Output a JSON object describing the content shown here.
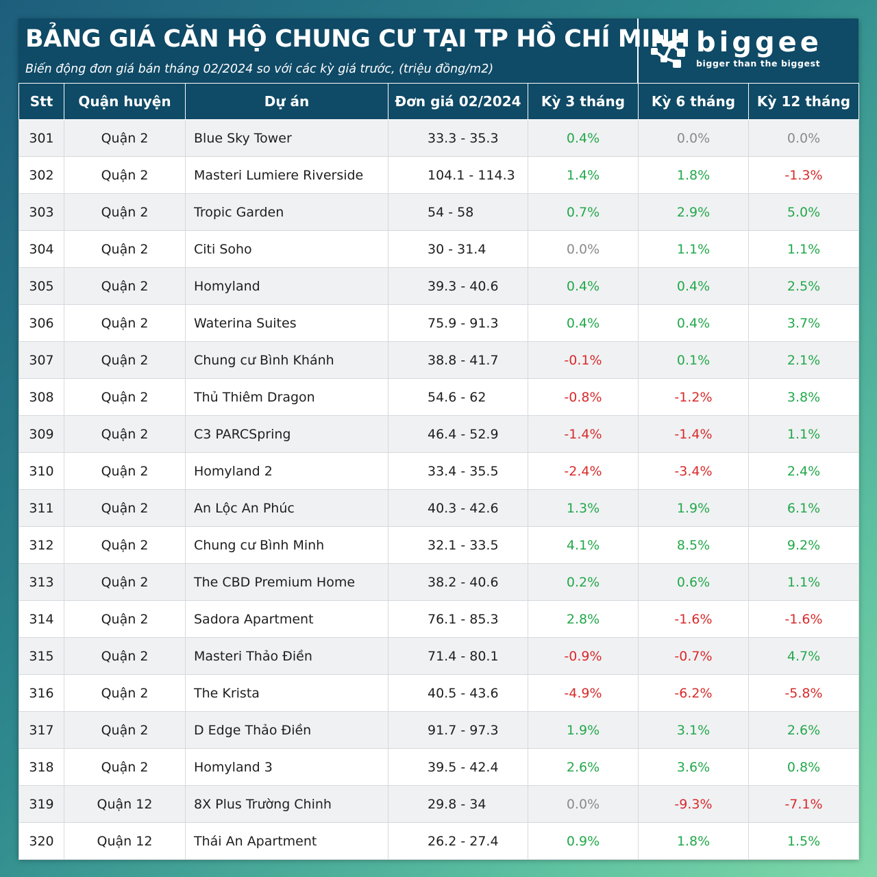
{
  "title": "BẢNG GIÁ CĂN HỘ CHUNG CƯ TẠI TP HỒ CHÍ MINH",
  "subtitle": "Biến động đơn giá bán tháng 02/2024 so với các kỳ giá trước, (triệu đồng/m2)",
  "logo": {
    "wordmark": "biggee",
    "tagline": "bigger than the biggest",
    "icon": "biggee-network-logo-icon"
  },
  "colors": {
    "header_bg": "#0f4a66",
    "positive": "#22a84a",
    "negative": "#d82a2a",
    "zero": "#8a8a8a"
  },
  "chart_data": {
    "type": "table",
    "columns": [
      "Stt",
      "Quận huyện",
      "Dự án",
      "Đơn giá 02/2024",
      "Kỳ 3 tháng",
      "Kỳ 6 tháng",
      "Kỳ 12 tháng"
    ],
    "rows": [
      [
        "301",
        "Quận 2",
        "Blue Sky Tower",
        "33.3 - 35.3",
        "0.4%",
        "0.0%",
        "0.0%"
      ],
      [
        "302",
        "Quận 2",
        "Masteri Lumiere Riverside",
        "104.1 - 114.3",
        "1.4%",
        "1.8%",
        "-1.3%"
      ],
      [
        "303",
        "Quận 2",
        "Tropic Garden",
        "54 - 58",
        "0.7%",
        "2.9%",
        "5.0%"
      ],
      [
        "304",
        "Quận 2",
        "Citi Soho",
        "30 - 31.4",
        "0.0%",
        "1.1%",
        "1.1%"
      ],
      [
        "305",
        "Quận 2",
        "Homyland",
        "39.3 - 40.6",
        "0.4%",
        "0.4%",
        "2.5%"
      ],
      [
        "306",
        "Quận 2",
        "Waterina Suites",
        "75.9 - 91.3",
        "0.4%",
        "0.4%",
        "3.7%"
      ],
      [
        "307",
        "Quận 2",
        "Chung cư Bình Khánh",
        "38.8 - 41.7",
        "-0.1%",
        "0.1%",
        "2.1%"
      ],
      [
        "308",
        "Quận 2",
        "Thủ Thiêm Dragon",
        "54.6 - 62",
        "-0.8%",
        "-1.2%",
        "3.8%"
      ],
      [
        "309",
        "Quận 2",
        "C3 PARCSpring",
        "46.4 - 52.9",
        "-1.4%",
        "-1.4%",
        "1.1%"
      ],
      [
        "310",
        "Quận 2",
        "Homyland 2",
        "33.4 - 35.5",
        "-2.4%",
        "-3.4%",
        "2.4%"
      ],
      [
        "311",
        "Quận 2",
        "An Lộc An Phúc",
        "40.3 - 42.6",
        "1.3%",
        "1.9%",
        "6.1%"
      ],
      [
        "312",
        "Quận 2",
        "Chung cư Bình Minh",
        "32.1 - 33.5",
        "4.1%",
        "8.5%",
        "9.2%"
      ],
      [
        "313",
        "Quận 2",
        "The CBD Premium Home",
        "38.2 - 40.6",
        "0.2%",
        "0.6%",
        "1.1%"
      ],
      [
        "314",
        "Quận 2",
        "Sadora Apartment",
        "76.1 - 85.3",
        "2.8%",
        "-1.6%",
        "-1.6%"
      ],
      [
        "315",
        "Quận 2",
        "Masteri Thảo Điền",
        "71.4 - 80.1",
        "-0.9%",
        "-0.7%",
        "4.7%"
      ],
      [
        "316",
        "Quận 2",
        "The Krista",
        "40.5 - 43.6",
        "-4.9%",
        "-6.2%",
        "-5.8%"
      ],
      [
        "317",
        "Quận 2",
        "D Edge Thảo Điền",
        "91.7 - 97.3",
        "1.9%",
        "3.1%",
        "2.6%"
      ],
      [
        "318",
        "Quận 2",
        "Homyland 3",
        "39.5 - 42.4",
        "2.6%",
        "3.6%",
        "0.8%"
      ],
      [
        "319",
        "Quận 12",
        "8X Plus Trường Chinh",
        "29.8 - 34",
        "0.0%",
        "-9.3%",
        "-7.1%"
      ],
      [
        "320",
        "Quận 12",
        "Thái An Apartment",
        "26.2 - 27.4",
        "0.9%",
        "1.8%",
        "1.5%"
      ]
    ]
  }
}
